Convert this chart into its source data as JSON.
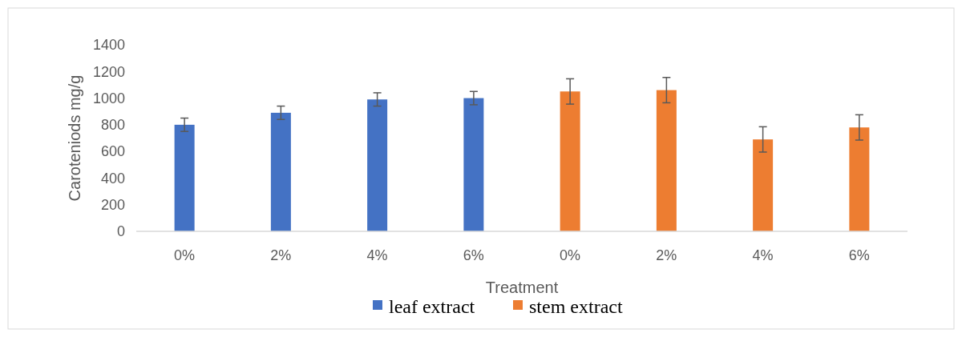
{
  "chart_data": {
    "type": "bar",
    "xlabel": "Treatment",
    "ylabel": "Caroteniods mg/g",
    "categories": [
      "0%",
      "2%",
      "4%",
      "6%",
      "0%",
      "2%",
      "4%",
      "6%"
    ],
    "series": [
      {
        "name": "leaf extract",
        "color": "#4472c4",
        "values": [
          800,
          890,
          990,
          1000,
          null,
          null,
          null,
          null
        ],
        "errors": [
          50,
          50,
          50,
          50,
          null,
          null,
          null,
          null
        ]
      },
      {
        "name": "stem extract",
        "color": "#ed7d31",
        "values": [
          null,
          null,
          null,
          null,
          1050,
          1060,
          690,
          780
        ],
        "errors": [
          null,
          null,
          null,
          null,
          95,
          95,
          95,
          95
        ]
      }
    ],
    "ylim": [
      0,
      1400
    ],
    "yticks": [
      0,
      200,
      400,
      600,
      800,
      1000,
      1200,
      1400
    ],
    "grid": false,
    "legend": "bottom"
  }
}
